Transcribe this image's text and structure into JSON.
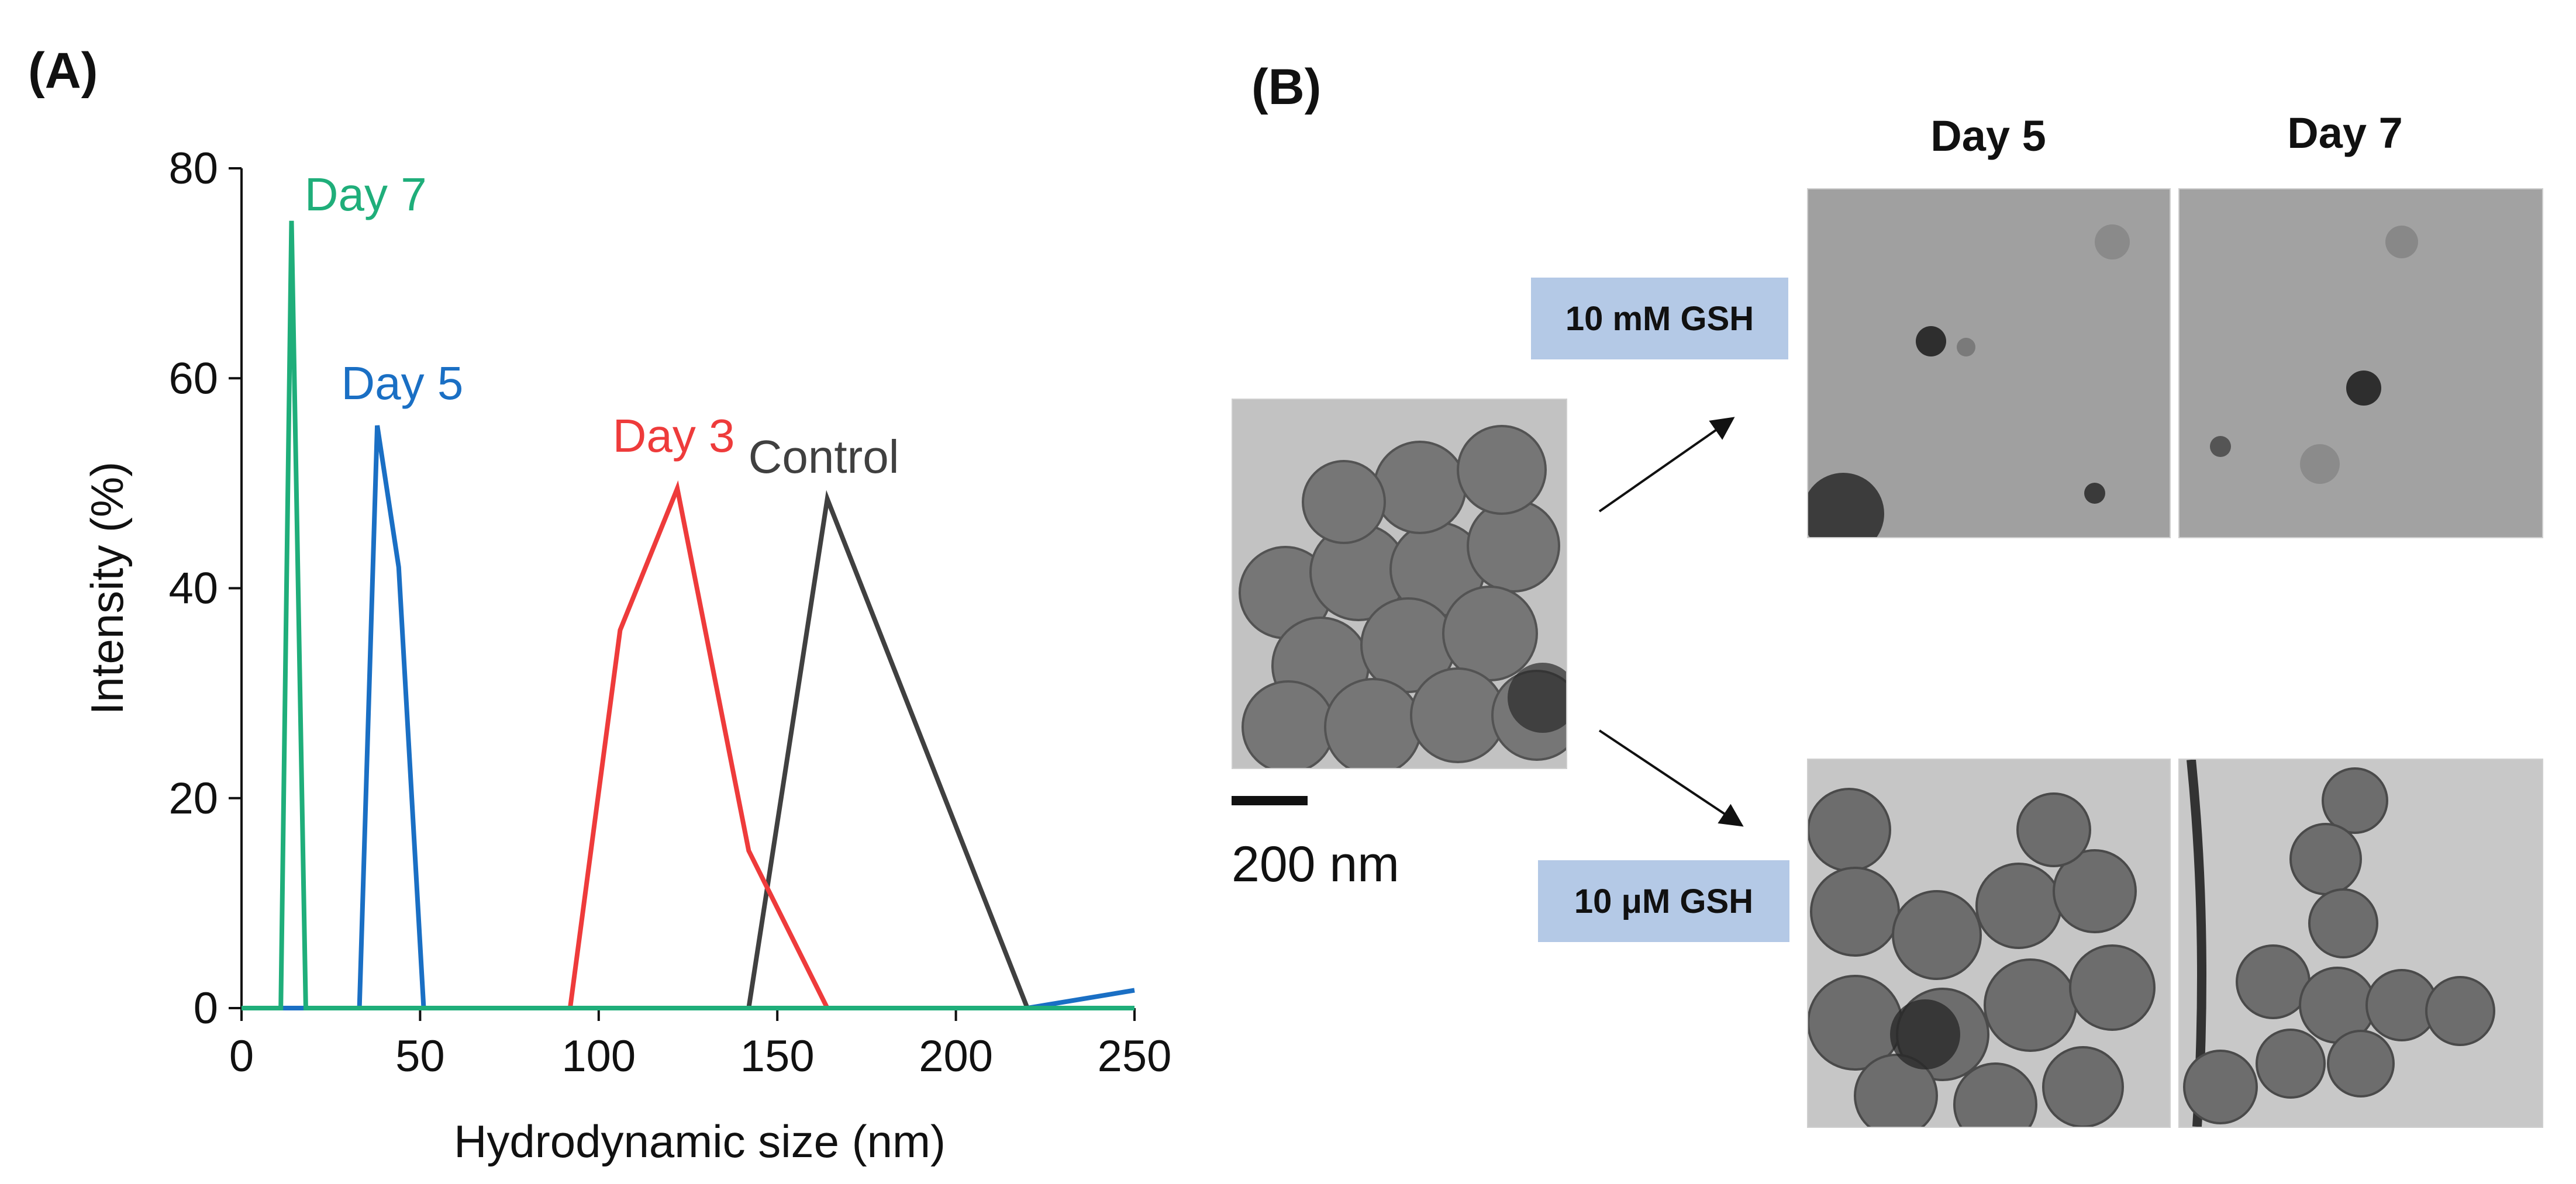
{
  "panel_a_label": "(A)",
  "panel_b_label": "(B)",
  "chart_data": {
    "type": "line",
    "xlabel": "Hydrodynamic size (nm)",
    "ylabel": "Intensity (%)",
    "xlim": [
      0,
      250
    ],
    "ylim": [
      0,
      80
    ],
    "xticks": [
      0,
      50,
      100,
      150,
      200,
      250
    ],
    "yticks": [
      0,
      20,
      40,
      60,
      80
    ],
    "grid": false,
    "legend": "inline labels",
    "series": [
      {
        "name": "Control",
        "color": "#404040",
        "x": [
          0,
          142,
          164,
          220,
          250
        ],
        "y": [
          0,
          0,
          48.5,
          0,
          0
        ]
      },
      {
        "name": "Day 3",
        "color": "#ee3b3b",
        "x": [
          0,
          92,
          106,
          122,
          142,
          164,
          250
        ],
        "y": [
          0,
          0,
          36,
          49.5,
          15,
          0,
          0
        ]
      },
      {
        "name": "Day 5",
        "color": "#1a6fc4",
        "x": [
          0,
          33,
          38,
          44,
          51,
          220,
          250
        ],
        "y": [
          0,
          0,
          55.5,
          42,
          0,
          0,
          1.7
        ]
      },
      {
        "name": "Day 7",
        "color": "#1fae7a",
        "x": [
          0,
          11,
          14,
          18,
          250
        ],
        "y": [
          0,
          0,
          75,
          0,
          0
        ]
      }
    ]
  },
  "panel_b": {
    "day5_label": "Day 5",
    "day7_label": "Day 7",
    "gsh_high": "10 mM GSH",
    "gsh_low": "10 μM GSH",
    "scale_bar": "200 nm"
  }
}
